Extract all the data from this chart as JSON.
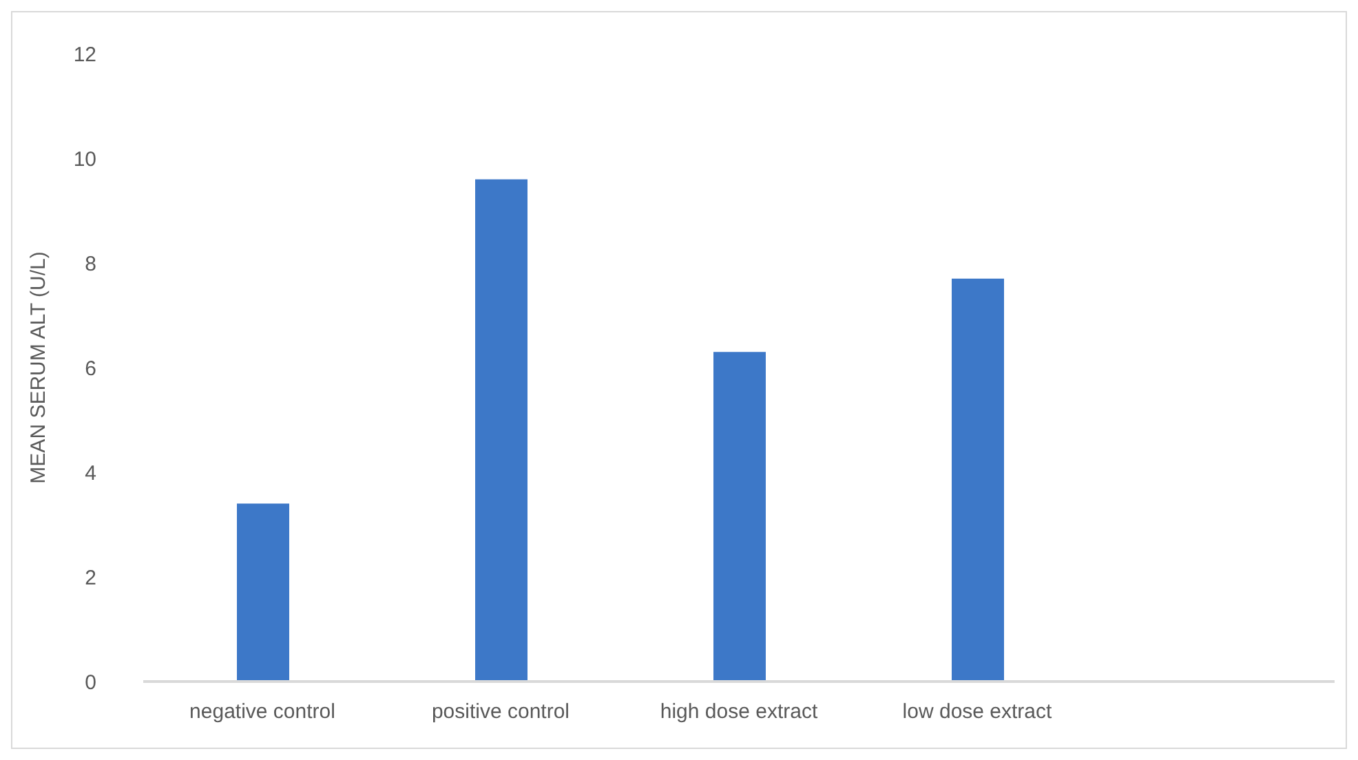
{
  "chart_data": {
    "type": "bar",
    "ylabel": "MEAN SERUM ALT (U/L)",
    "categories": [
      "negative control",
      "positive control",
      "high dose extract",
      "low dose extract",
      null
    ],
    "values": [
      3.4,
      9.6,
      6.3,
      7.7,
      null
    ],
    "color": "#3d78c8",
    "ylim": [
      0,
      12
    ],
    "yticks": [
      0,
      2,
      4,
      6,
      8,
      10,
      12
    ],
    "grid": false,
    "legend": false
  }
}
